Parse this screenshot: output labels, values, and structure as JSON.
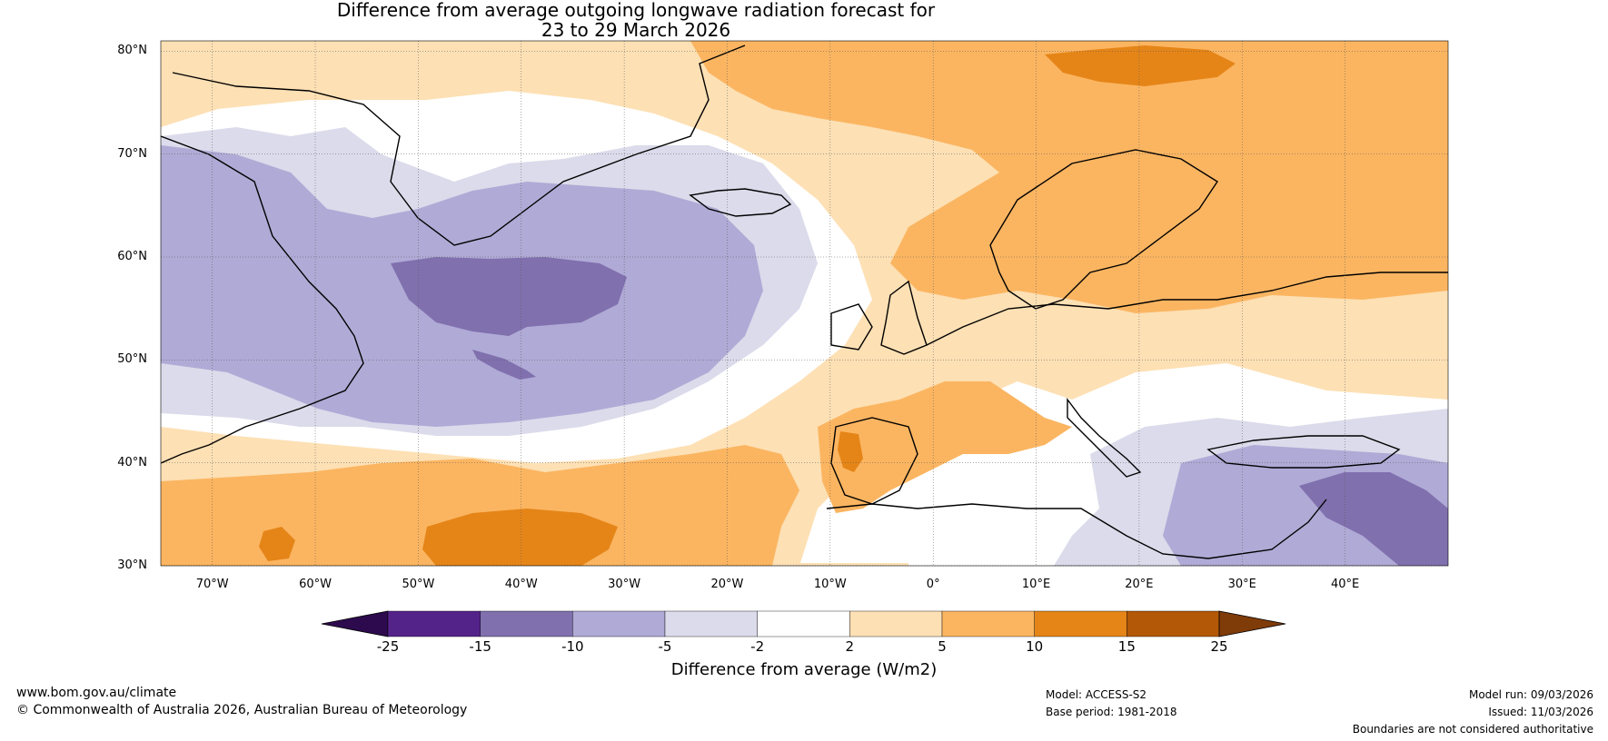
{
  "title": {
    "line1": "Difference from average outgoing longwave radiation forecast for",
    "line2": "23 to 29 March 2026"
  },
  "map": {
    "lat_labels": [
      "80°N",
      "70°N",
      "60°N",
      "50°N",
      "40°N",
      "30°N"
    ],
    "lon_labels": [
      "70°W",
      "60°W",
      "50°W",
      "40°W",
      "30°W",
      "20°W",
      "10°W",
      "0°",
      "10°E",
      "20°E",
      "30°E",
      "40°E"
    ],
    "extent": {
      "lon_min": -75,
      "lon_max": 50,
      "lat_min": 30,
      "lat_max": 81
    }
  },
  "colorbar": {
    "ticks": [
      "-25",
      "-15",
      "-10",
      "-5",
      "-2",
      "2",
      "5",
      "10",
      "15",
      "25"
    ],
    "colors": [
      "#2d0a4e",
      "#54238a",
      "#8070ae",
      "#b0aad6",
      "#dbdbeb",
      "#ffffff",
      "#fde0b4",
      "#fbb561",
      "#e58518",
      "#b35806",
      "#7f3b08"
    ],
    "title": "Difference from average (W/m2)"
  },
  "footer": {
    "website": "www.bom.gov.au/climate",
    "copyright": "© Commonwealth of Australia 2026, Australian Bureau of Meteorology",
    "model": "Model: ACCESS-S2",
    "base_period": "Base period: 1981-2018",
    "model_run": "Model run: 09/03/2026",
    "issued": "Issued: 11/03/2026",
    "disclaimer": "Boundaries are not considered authoritative"
  }
}
